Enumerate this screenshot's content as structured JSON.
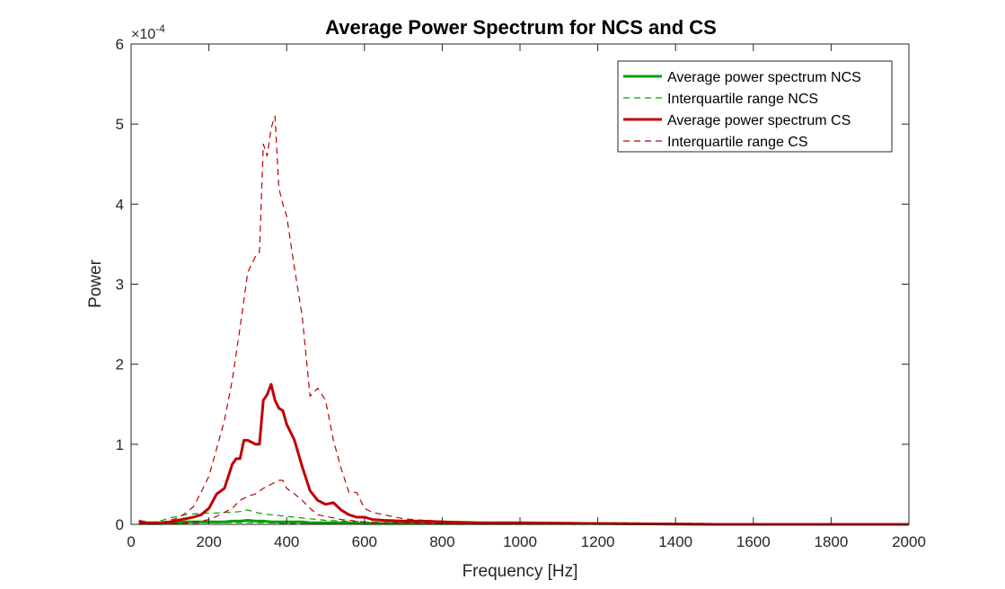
{
  "chart_data": {
    "type": "line",
    "title": "Average Power Spectrum for NCS and CS",
    "xlabel": "Frequency [Hz]",
    "ylabel": "Power",
    "y_exponent": "×10",
    "y_exponent_power": "-4",
    "xlim": [
      0,
      2000
    ],
    "ylim": [
      0,
      6
    ],
    "y_scale_factor": 0.0001,
    "x_ticks": [
      0,
      200,
      400,
      600,
      800,
      1000,
      1200,
      1400,
      1600,
      1800,
      2000
    ],
    "y_ticks": [
      0,
      1,
      2,
      3,
      4,
      5,
      6
    ],
    "grid": false,
    "box": true,
    "legend_position": "top-right",
    "series": [
      {
        "name": "Average power spectrum NCS",
        "color": "#00a000",
        "dash": "solid",
        "emphasis": "bold",
        "x": [
          20,
          40,
          60,
          80,
          100,
          120,
          140,
          160,
          180,
          200,
          220,
          240,
          260,
          280,
          300,
          320,
          340,
          360,
          380,
          400,
          420,
          440,
          460,
          480,
          500,
          550,
          600,
          700,
          800,
          1000,
          1200,
          1500,
          2000
        ],
        "y": [
          0.04,
          0.01,
          0.01,
          0.01,
          0.02,
          0.02,
          0.03,
          0.03,
          0.03,
          0.03,
          0.03,
          0.03,
          0.04,
          0.04,
          0.05,
          0.04,
          0.04,
          0.03,
          0.03,
          0.03,
          0.03,
          0.03,
          0.02,
          0.02,
          0.02,
          0.02,
          0.01,
          0.01,
          0.01,
          0.01,
          0.01,
          0.0,
          0.0
        ]
      },
      {
        "name": "Interquartile range NCS",
        "color": "#00a000",
        "dash": "dashed",
        "x": [
          20,
          40,
          60,
          80,
          100,
          120,
          140,
          160,
          180,
          200,
          220,
          240,
          260,
          280,
          300,
          320,
          340,
          360,
          380,
          400,
          420,
          440,
          460,
          480,
          500,
          550,
          600,
          700,
          800,
          1000,
          1200,
          1500,
          2000
        ],
        "y": [
          0.02,
          0.02,
          0.03,
          0.05,
          0.08,
          0.1,
          0.12,
          0.13,
          0.14,
          0.14,
          0.14,
          0.15,
          0.15,
          0.16,
          0.18,
          0.15,
          0.13,
          0.12,
          0.11,
          0.1,
          0.09,
          0.08,
          0.07,
          0.06,
          0.05,
          0.04,
          0.03,
          0.02,
          0.02,
          0.01,
          0.01,
          0.01,
          0.01
        ]
      },
      {
        "name": "",
        "color": "#00a000",
        "dash": "dashed",
        "x": [
          20,
          60,
          100,
          150,
          200,
          250,
          300,
          350,
          400,
          500,
          600,
          800,
          1000,
          1500,
          2000
        ],
        "y": [
          0.0,
          0.0,
          0.01,
          0.01,
          0.02,
          0.02,
          0.02,
          0.02,
          0.01,
          0.01,
          0.01,
          0.0,
          0.0,
          0.0,
          0.0
        ]
      },
      {
        "name": "Average power spectrum CS",
        "color": "#c00000",
        "dash": "solid",
        "emphasis": "bold",
        "x": [
          20,
          40,
          60,
          80,
          100,
          120,
          140,
          160,
          180,
          200,
          220,
          240,
          260,
          270,
          280,
          290,
          300,
          320,
          330,
          340,
          350,
          360,
          370,
          380,
          390,
          400,
          420,
          440,
          460,
          480,
          500,
          520,
          540,
          560,
          580,
          600,
          620,
          650,
          700,
          750,
          800,
          900,
          1000,
          1200,
          1500,
          2000
        ],
        "y": [
          0.04,
          0.02,
          0.02,
          0.02,
          0.03,
          0.05,
          0.07,
          0.09,
          0.12,
          0.2,
          0.38,
          0.45,
          0.75,
          0.82,
          0.82,
          1.05,
          1.05,
          1.0,
          1.0,
          1.55,
          1.62,
          1.75,
          1.55,
          1.45,
          1.42,
          1.25,
          1.05,
          0.72,
          0.42,
          0.3,
          0.25,
          0.27,
          0.18,
          0.12,
          0.09,
          0.09,
          0.06,
          0.05,
          0.04,
          0.04,
          0.03,
          0.02,
          0.02,
          0.01,
          0.0,
          0.0
        ]
      },
      {
        "name": "Interquartile range CS",
        "color": "#c00000",
        "dash": "dashed",
        "x": [
          20,
          40,
          60,
          80,
          100,
          120,
          140,
          160,
          180,
          200,
          220,
          240,
          260,
          280,
          300,
          320,
          330,
          340,
          350,
          360,
          370,
          380,
          390,
          400,
          420,
          440,
          460,
          480,
          500,
          520,
          540,
          560,
          580,
          600,
          620,
          650,
          700,
          750,
          800,
          900,
          1000,
          1200,
          1500,
          2000
        ],
        "y": [
          0.02,
          0.02,
          0.02,
          0.03,
          0.05,
          0.08,
          0.14,
          0.22,
          0.4,
          0.6,
          0.95,
          1.3,
          1.8,
          2.45,
          3.15,
          3.35,
          3.4,
          4.75,
          4.6,
          4.95,
          5.1,
          4.2,
          4.0,
          3.85,
          3.2,
          2.6,
          1.6,
          1.7,
          1.55,
          1.05,
          0.7,
          0.4,
          0.4,
          0.2,
          0.15,
          0.12,
          0.07,
          0.05,
          0.04,
          0.02,
          0.02,
          0.02,
          0.01,
          0.01
        ]
      },
      {
        "name": "",
        "color": "#c00000",
        "dash": "dashed",
        "x": [
          20,
          40,
          60,
          80,
          100,
          120,
          140,
          160,
          180,
          200,
          220,
          240,
          260,
          280,
          300,
          320,
          340,
          360,
          380,
          390,
          400,
          420,
          440,
          460,
          480,
          500,
          540,
          560,
          600,
          650,
          700,
          800,
          1000,
          1500,
          2000
        ],
        "y": [
          0.01,
          0.01,
          0.01,
          0.01,
          0.01,
          0.01,
          0.02,
          0.03,
          0.04,
          0.06,
          0.1,
          0.15,
          0.2,
          0.3,
          0.35,
          0.38,
          0.45,
          0.5,
          0.55,
          0.55,
          0.45,
          0.38,
          0.3,
          0.2,
          0.12,
          0.1,
          0.06,
          0.05,
          0.03,
          0.02,
          0.02,
          0.01,
          0.01,
          0.0,
          0.0
        ]
      }
    ]
  }
}
